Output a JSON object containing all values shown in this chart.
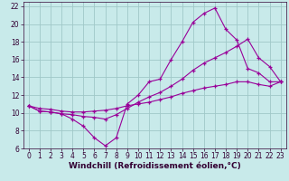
{
  "title": "",
  "xlabel": "Windchill (Refroidissement éolien,°C)",
  "background_color": "#c8eaea",
  "grid_color": "#a0c8c8",
  "line_color": "#990099",
  "xlim": [
    -0.5,
    23.5
  ],
  "ylim": [
    6,
    22.5
  ],
  "xticks": [
    0,
    1,
    2,
    3,
    4,
    5,
    6,
    7,
    8,
    9,
    10,
    11,
    12,
    13,
    14,
    15,
    16,
    17,
    18,
    19,
    20,
    21,
    22,
    23
  ],
  "yticks": [
    6,
    8,
    10,
    12,
    14,
    16,
    18,
    20,
    22
  ],
  "line1_x": [
    0,
    1,
    2,
    3,
    4,
    5,
    6,
    7,
    8,
    9,
    10,
    11,
    12,
    13,
    14,
    15,
    16,
    17,
    18,
    19,
    20,
    21,
    22,
    23
  ],
  "line1_y": [
    10.8,
    10.2,
    10.1,
    9.9,
    9.3,
    8.5,
    7.2,
    6.3,
    7.2,
    11.0,
    12.0,
    13.5,
    13.8,
    16.0,
    18.0,
    20.2,
    21.2,
    21.8,
    19.4,
    18.2,
    15.0,
    14.5,
    13.5,
    13.5
  ],
  "line2_x": [
    0,
    1,
    2,
    3,
    4,
    5,
    6,
    7,
    8,
    9,
    10,
    11,
    12,
    13,
    14,
    15,
    16,
    17,
    18,
    19,
    20,
    21,
    22,
    23
  ],
  "line2_y": [
    10.8,
    10.2,
    10.1,
    9.9,
    9.8,
    9.6,
    9.5,
    9.3,
    9.8,
    10.5,
    11.2,
    11.8,
    12.3,
    13.0,
    13.8,
    14.8,
    15.6,
    16.2,
    16.8,
    17.5,
    18.3,
    16.2,
    15.2,
    13.5
  ],
  "line3_x": [
    0,
    1,
    2,
    3,
    4,
    5,
    6,
    7,
    8,
    9,
    10,
    11,
    12,
    13,
    14,
    15,
    16,
    17,
    18,
    19,
    20,
    21,
    22,
    23
  ],
  "line3_y": [
    10.8,
    10.5,
    10.4,
    10.2,
    10.1,
    10.1,
    10.2,
    10.3,
    10.5,
    10.8,
    11.0,
    11.2,
    11.5,
    11.8,
    12.2,
    12.5,
    12.8,
    13.0,
    13.2,
    13.5,
    13.5,
    13.2,
    13.0,
    13.5
  ],
  "marker": "+",
  "markersize": 3,
  "linewidth": 0.8,
  "fontsize_label": 6.5,
  "fontsize_tick": 5.5
}
